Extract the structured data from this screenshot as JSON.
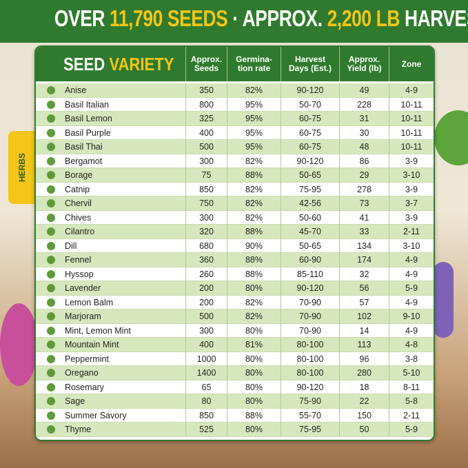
{
  "title": [
    "OVER",
    "11,790 SEEDS",
    "· APPROX.",
    "2,200 LB",
    "HARVEST"
  ],
  "category": "HERBS",
  "table": {
    "heading": [
      "SEED",
      "VARIETY"
    ],
    "columns": [
      "Approx. Seeds",
      "Germina-tion rate",
      "Harvest Days (Est.)",
      "Approx. Yield (lb)",
      "Zone"
    ],
    "rows": [
      [
        "Anise",
        "350",
        "82%",
        "90-120",
        "49",
        "4-9"
      ],
      [
        "Basil Italian",
        "800",
        "95%",
        "50-70",
        "228",
        "10-11"
      ],
      [
        "Basil Lemon",
        "325",
        "95%",
        "60-75",
        "31",
        "10-11"
      ],
      [
        "Basil Purple",
        "400",
        "95%",
        "60-75",
        "30",
        "10-11"
      ],
      [
        "Basil Thai",
        "500",
        "95%",
        "60-75",
        "48",
        "10-11"
      ],
      [
        "Bergamot",
        "300",
        "82%",
        "90-120",
        "86",
        "3-9"
      ],
      [
        "Borage",
        "75",
        "88%",
        "50-65",
        "29",
        "3-10"
      ],
      [
        "Catnip",
        "850",
        "82%",
        "75-95",
        "278",
        "3-9"
      ],
      [
        "Chervil",
        "750",
        "82%",
        "42-56",
        "73",
        "3-7"
      ],
      [
        "Chives",
        "300",
        "82%",
        "50-60",
        "41",
        "3-9"
      ],
      [
        "Cilantro",
        "320",
        "88%",
        "45-70",
        "33",
        "2-11"
      ],
      [
        "Dill",
        "680",
        "90%",
        "50-65",
        "134",
        "3-10"
      ],
      [
        "Fennel",
        "360",
        "88%",
        "60-90",
        "174",
        "4-9"
      ],
      [
        "Hyssop",
        "260",
        "88%",
        "85-110",
        "32",
        "4-9"
      ],
      [
        "Lavender",
        "200",
        "80%",
        "90-120",
        "56",
        "5-9"
      ],
      [
        "Lemon Balm",
        "200",
        "82%",
        "70-90",
        "57",
        "4-9"
      ],
      [
        "Marjoram",
        "500",
        "82%",
        "70-90",
        "102",
        "9-10"
      ],
      [
        "Mint, Lemon Mint",
        "300",
        "80%",
        "70-90",
        "14",
        "4-9"
      ],
      [
        "Mountain Mint",
        "400",
        "81%",
        "80-100",
        "113",
        "4-8"
      ],
      [
        "Peppermint",
        "1000",
        "80%",
        "80-100",
        "96",
        "3-8"
      ],
      [
        "Oregano",
        "1400",
        "80%",
        "80-100",
        "280",
        "5-10"
      ],
      [
        "Rosemary",
        "65",
        "80%",
        "90-120",
        "18",
        "8-11"
      ],
      [
        "Sage",
        "80",
        "80%",
        "75-90",
        "22",
        "5-8"
      ],
      [
        "Summer Savory",
        "850",
        "88%",
        "55-70",
        "150",
        "2-11"
      ],
      [
        "Thyme",
        "525",
        "80%",
        "75-95",
        "50",
        "5-9"
      ]
    ]
  }
}
